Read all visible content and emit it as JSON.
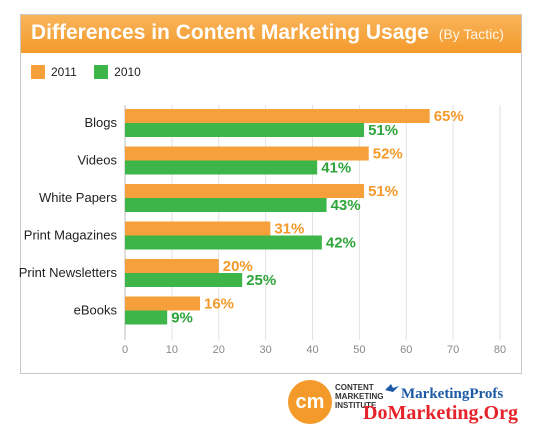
{
  "header": {
    "title": "Differences in Content Marketing Usage",
    "subtitle": "(By Tactic)"
  },
  "colors": {
    "title_bar": "#f39a2b",
    "series_2011": "#f5a03a",
    "series_2010": "#3db549",
    "label_2011": "#f39a2b",
    "label_2010": "#2ea43a",
    "grid": "#e2e2e2",
    "axis_text": "#888888"
  },
  "chart_data": {
    "type": "bar",
    "orientation": "horizontal",
    "categories": [
      "Blogs",
      "Videos",
      "White Papers",
      "Print Magazines",
      "Print Newsletters",
      "eBooks"
    ],
    "series": [
      {
        "name": "2011",
        "values": [
          65,
          52,
          51,
          31,
          20,
          16
        ],
        "labels": [
          "65%",
          "52%",
          "51%",
          "31%",
          "20%",
          "16%"
        ]
      },
      {
        "name": "2010",
        "values": [
          51,
          41,
          43,
          42,
          25,
          9
        ],
        "labels": [
          "51%",
          "41%",
          "43%",
          "42%",
          "25%",
          "9%"
        ]
      }
    ],
    "xlim": [
      0,
      80
    ],
    "xticks": [
      "0",
      "10",
      "20",
      "30",
      "40",
      "50",
      "60",
      "70",
      "80"
    ],
    "grid": true,
    "legend": "top-left"
  },
  "footer": {
    "cmi_logo_text": "cm",
    "cmi_name": [
      "CONTENT",
      "MARKETING",
      "INSTITUTE"
    ],
    "mp_name": "MarketingProfs",
    "watermark": "DoMarketing.Org"
  }
}
